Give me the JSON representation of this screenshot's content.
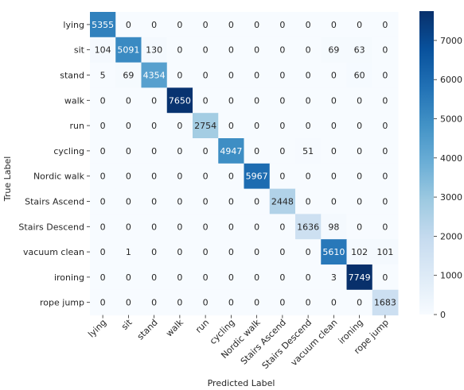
{
  "chart_data": {
    "type": "heatmap",
    "xlabel": "Predicted Label",
    "ylabel": "True Label",
    "x_categories": [
      "lying",
      "sit",
      "stand",
      "walk",
      "run",
      "cycling",
      "Nordic walk",
      "Stairs Ascend",
      "Stairs Descend",
      "vacuum clean",
      "ironing",
      "rope jump"
    ],
    "y_categories": [
      "lying",
      "sit",
      "stand",
      "walk",
      "run",
      "cycling",
      "Nordic walk",
      "Stairs Ascend",
      "Stairs Descend",
      "vacuum clean",
      "ironing",
      "rope jump"
    ],
    "values": [
      [
        5355,
        0,
        0,
        0,
        0,
        0,
        0,
        0,
        0,
        0,
        0,
        0
      ],
      [
        104,
        5091,
        130,
        0,
        0,
        0,
        0,
        0,
        0,
        69,
        63,
        0
      ],
      [
        5,
        69,
        4354,
        0,
        0,
        0,
        0,
        0,
        0,
        0,
        60,
        0
      ],
      [
        0,
        0,
        0,
        7650,
        0,
        0,
        0,
        0,
        0,
        0,
        0,
        0
      ],
      [
        0,
        0,
        0,
        0,
        2754,
        0,
        0,
        0,
        0,
        0,
        0,
        0
      ],
      [
        0,
        0,
        0,
        0,
        0,
        4947,
        0,
        0,
        51,
        0,
        0,
        0
      ],
      [
        0,
        0,
        0,
        0,
        0,
        0,
        5967,
        0,
        0,
        0,
        0,
        0
      ],
      [
        0,
        0,
        0,
        0,
        0,
        0,
        0,
        2448,
        0,
        0,
        0,
        0
      ],
      [
        0,
        0,
        0,
        0,
        0,
        0,
        0,
        0,
        1636,
        98,
        0,
        0
      ],
      [
        0,
        1,
        0,
        0,
        0,
        0,
        0,
        0,
        0,
        5610,
        102,
        101
      ],
      [
        0,
        0,
        0,
        0,
        0,
        0,
        0,
        0,
        0,
        3,
        7749,
        0
      ],
      [
        0,
        0,
        0,
        0,
        0,
        0,
        0,
        0,
        0,
        0,
        0,
        1683
      ]
    ],
    "colormap": "Blues",
    "color_range": [
      0,
      7749
    ],
    "colorbar_ticks": [
      0,
      1000,
      2000,
      3000,
      4000,
      5000,
      6000,
      7000
    ],
    "x_tick_rotation": 45
  }
}
